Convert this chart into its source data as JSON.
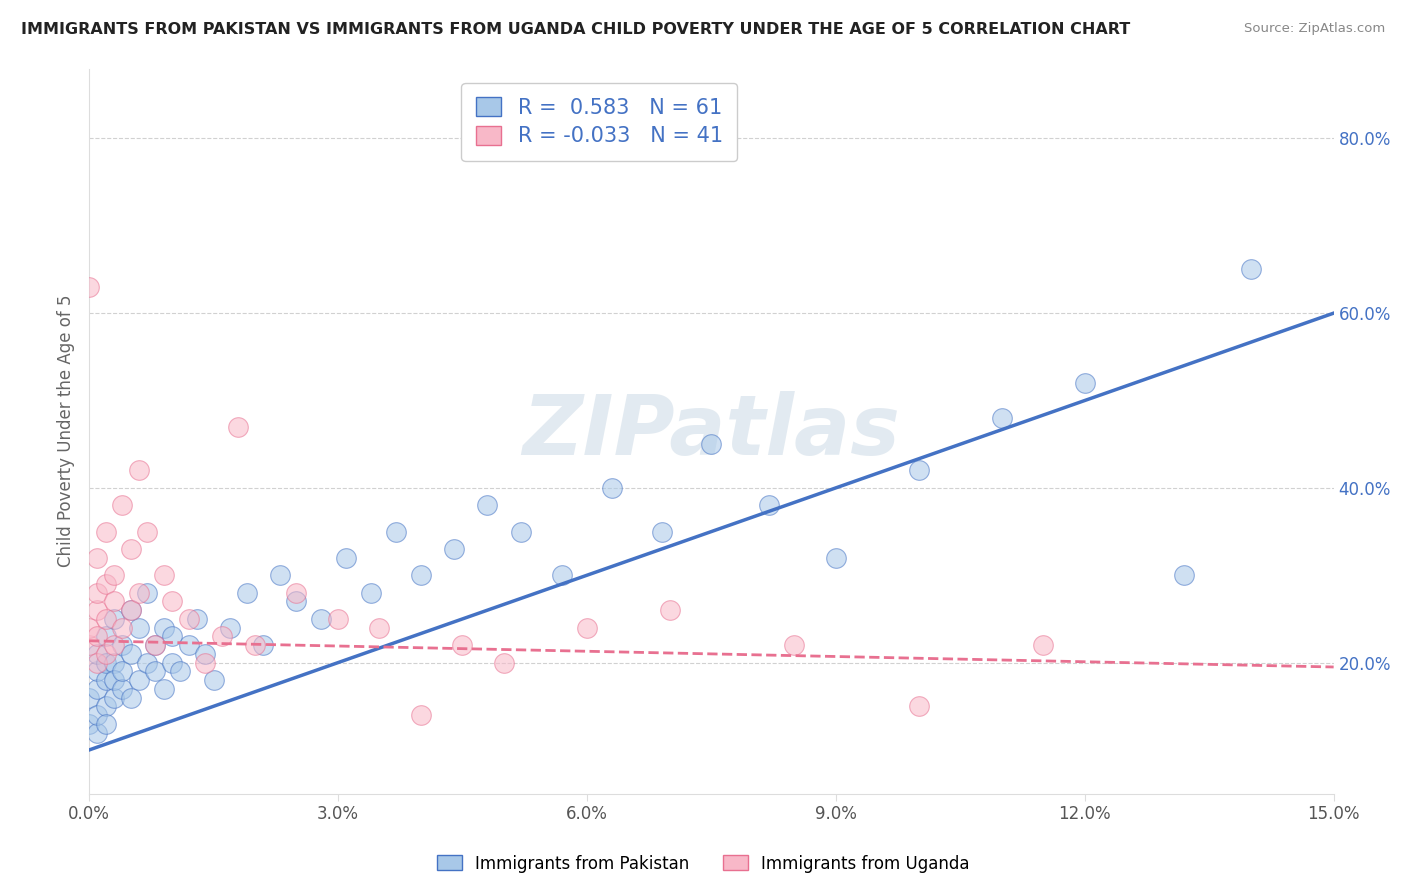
{
  "title": "IMMIGRANTS FROM PAKISTAN VS IMMIGRANTS FROM UGANDA CHILD POVERTY UNDER THE AGE OF 5 CORRELATION CHART",
  "source": "Source: ZipAtlas.com",
  "ylabel": "Child Poverty Under the Age of 5",
  "xlim": [
    0.0,
    0.15
  ],
  "ylim": [
    0.05,
    0.88
  ],
  "xticks": [
    0.0,
    0.03,
    0.06,
    0.09,
    0.12,
    0.15
  ],
  "xtick_labels": [
    "0.0%",
    "3.0%",
    "6.0%",
    "9.0%",
    "12.0%",
    "15.0%"
  ],
  "yticks": [
    0.2,
    0.4,
    0.6,
    0.8
  ],
  "ytick_labels": [
    "20.0%",
    "40.0%",
    "60.0%",
    "80.0%"
  ],
  "grid_color": "#cccccc",
  "background_color": "#ffffff",
  "watermark": "ZIPatlas",
  "pakistan_color": "#a8c8e8",
  "uganda_color": "#f8b8c8",
  "pakistan_line_color": "#4472c4",
  "uganda_line_color": "#e87090",
  "pakistan_R": 0.583,
  "pakistan_N": 61,
  "uganda_R": -0.033,
  "uganda_N": 41,
  "legend_label_pakistan": "Immigrants from Pakistan",
  "legend_label_uganda": "Immigrants from Uganda",
  "pakistan_trend_x0": 0.0,
  "pakistan_trend_y0": 0.1,
  "pakistan_trend_x1": 0.15,
  "pakistan_trend_y1": 0.6,
  "uganda_trend_x0": 0.0,
  "uganda_trend_y0": 0.225,
  "uganda_trend_x1": 0.15,
  "uganda_trend_y1": 0.195,
  "pakistan_x": [
    0.0,
    0.0,
    0.001,
    0.001,
    0.001,
    0.001,
    0.001,
    0.002,
    0.002,
    0.002,
    0.002,
    0.002,
    0.003,
    0.003,
    0.003,
    0.003,
    0.004,
    0.004,
    0.004,
    0.005,
    0.005,
    0.005,
    0.006,
    0.006,
    0.007,
    0.007,
    0.008,
    0.008,
    0.009,
    0.009,
    0.01,
    0.01,
    0.011,
    0.012,
    0.013,
    0.014,
    0.015,
    0.017,
    0.019,
    0.021,
    0.023,
    0.025,
    0.028,
    0.031,
    0.034,
    0.037,
    0.04,
    0.044,
    0.048,
    0.052,
    0.057,
    0.063,
    0.069,
    0.075,
    0.082,
    0.09,
    0.1,
    0.11,
    0.12,
    0.132,
    0.14
  ],
  "pakistan_y": [
    0.13,
    0.16,
    0.12,
    0.17,
    0.14,
    0.19,
    0.21,
    0.15,
    0.18,
    0.2,
    0.13,
    0.23,
    0.16,
    0.2,
    0.25,
    0.18,
    0.17,
    0.22,
    0.19,
    0.21,
    0.16,
    0.26,
    0.18,
    0.24,
    0.2,
    0.28,
    0.22,
    0.19,
    0.24,
    0.17,
    0.2,
    0.23,
    0.19,
    0.22,
    0.25,
    0.21,
    0.18,
    0.24,
    0.28,
    0.22,
    0.3,
    0.27,
    0.25,
    0.32,
    0.28,
    0.35,
    0.3,
    0.33,
    0.38,
    0.35,
    0.3,
    0.4,
    0.35,
    0.45,
    0.38,
    0.32,
    0.42,
    0.48,
    0.52,
    0.3,
    0.65
  ],
  "uganda_x": [
    0.0,
    0.0,
    0.0,
    0.001,
    0.001,
    0.001,
    0.001,
    0.001,
    0.002,
    0.002,
    0.002,
    0.002,
    0.003,
    0.003,
    0.003,
    0.004,
    0.004,
    0.005,
    0.005,
    0.006,
    0.006,
    0.007,
    0.008,
    0.009,
    0.01,
    0.012,
    0.014,
    0.016,
    0.018,
    0.02,
    0.025,
    0.03,
    0.035,
    0.04,
    0.045,
    0.05,
    0.06,
    0.07,
    0.085,
    0.1,
    0.115
  ],
  "uganda_y": [
    0.22,
    0.24,
    0.63,
    0.2,
    0.23,
    0.26,
    0.28,
    0.32,
    0.21,
    0.25,
    0.29,
    0.35,
    0.22,
    0.27,
    0.3,
    0.24,
    0.38,
    0.26,
    0.33,
    0.28,
    0.42,
    0.35,
    0.22,
    0.3,
    0.27,
    0.25,
    0.2,
    0.23,
    0.47,
    0.22,
    0.28,
    0.25,
    0.24,
    0.14,
    0.22,
    0.2,
    0.24,
    0.26,
    0.22,
    0.15,
    0.22
  ]
}
